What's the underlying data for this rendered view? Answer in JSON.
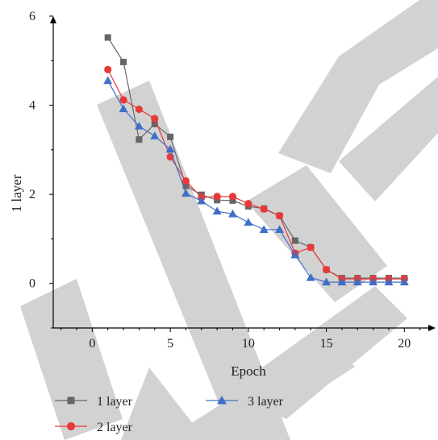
{
  "chart_data": {
    "type": "line",
    "xlabel": "Epoch",
    "ylabel": "1 layer",
    "xlim": [
      -2.5,
      22
    ],
    "ylim": [
      -1,
      6
    ],
    "xticks": [
      0,
      5,
      10,
      15,
      20
    ],
    "yticks": [
      0,
      2,
      4,
      6
    ],
    "grid": false,
    "legend_position": "bottom-left",
    "watermark_text": "ACCEPTED",
    "series": [
      {
        "name": "1 layer",
        "color": "#666666",
        "marker": "square",
        "x": [
          1,
          2,
          3,
          4,
          5,
          6,
          7,
          8,
          9,
          10,
          11,
          12,
          13,
          14,
          15,
          16,
          17,
          18,
          19,
          20
        ],
        "y": [
          5.52,
          4.97,
          3.23,
          3.58,
          3.29,
          2.19,
          1.99,
          1.87,
          1.86,
          1.73,
          1.68,
          1.52,
          0.96,
          0.81,
          0.31,
          0.12,
          0.12,
          0.12,
          0.12,
          0.12
        ]
      },
      {
        "name": "2 layer",
        "color": "#e8393a",
        "marker": "circle",
        "x": [
          1,
          2,
          3,
          4,
          5,
          6,
          7,
          8,
          9,
          10,
          11,
          12,
          13,
          14,
          15,
          16,
          17,
          18,
          19,
          20
        ],
        "y": [
          4.8,
          4.12,
          3.91,
          3.7,
          2.84,
          2.3,
          1.93,
          1.95,
          1.95,
          1.79,
          1.67,
          1.52,
          0.68,
          0.81,
          0.31,
          0.1,
          0.1,
          0.1,
          0.1,
          0.1
        ]
      },
      {
        "name": "3 layer",
        "color": "#3f6fc6",
        "marker": "triangle",
        "x": [
          1,
          2,
          3,
          4,
          5,
          6,
          7,
          8,
          9,
          10,
          11,
          12,
          13,
          14,
          15,
          16,
          17,
          18,
          19,
          20
        ],
        "y": [
          4.55,
          3.92,
          3.53,
          3.31,
          3.01,
          2.02,
          1.85,
          1.62,
          1.56,
          1.37,
          1.21,
          1.21,
          0.64,
          0.13,
          0.03,
          0.03,
          0.03,
          0.03,
          0.03,
          0.03
        ]
      }
    ]
  }
}
